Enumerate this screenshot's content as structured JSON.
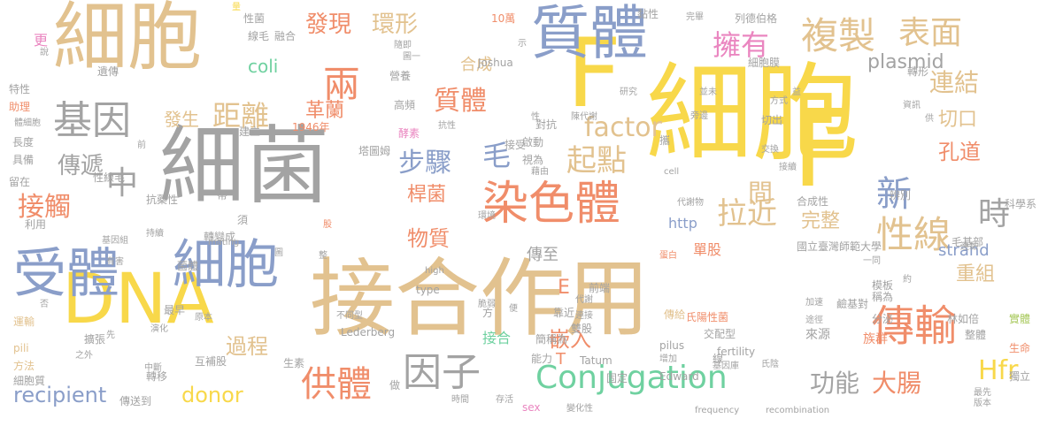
{
  "palette": {
    "tan": "#e2c28f",
    "gray": "#a3a3a3",
    "yellow": "#f8d84a",
    "coral": "#f08d6a",
    "blue": "#8a9ec9",
    "green": "#6fd1a0",
    "pink": "#ea86c0",
    "olive": "#a7c85b"
  },
  "words": [
    {
      "text": "接合作用",
      "size": 96,
      "color": "tan",
      "orient": "h"
    },
    {
      "text": "細胞",
      "size": 120,
      "color": "yellow",
      "orient": "h"
    },
    {
      "text": "細菌",
      "size": 96,
      "color": "gray",
      "orient": "h"
    },
    {
      "text": "細胞",
      "size": 84,
      "color": "tan",
      "orient": "h"
    },
    {
      "text": "DNA",
      "size": 78,
      "color": "yellow",
      "orient": "h"
    },
    {
      "text": "F",
      "size": 120,
      "color": "yellow",
      "orient": "h"
    },
    {
      "text": "F",
      "size": 108,
      "color": "yellow",
      "orient": "h"
    },
    {
      "text": "質體",
      "size": 66,
      "color": "blue",
      "orient": "h"
    },
    {
      "text": "細胞",
      "size": 60,
      "color": "blue",
      "orient": "h"
    },
    {
      "text": "受體",
      "size": 60,
      "color": "blue",
      "orient": "h"
    },
    {
      "text": "染色體",
      "size": 52,
      "color": "coral",
      "orient": "h"
    },
    {
      "text": "複製",
      "size": 42,
      "color": "tan",
      "orient": "h"
    },
    {
      "text": "表面",
      "size": 36,
      "color": "tan",
      "orient": "h"
    },
    {
      "text": "傳輸",
      "size": 48,
      "color": "coral",
      "orient": "h"
    },
    {
      "text": "基因",
      "size": 44,
      "color": "gray",
      "orient": "h"
    },
    {
      "text": "因子",
      "size": 44,
      "color": "gray",
      "orient": "h"
    },
    {
      "text": "Conjugation",
      "size": 36,
      "color": "green",
      "orient": "h"
    },
    {
      "text": "性線",
      "size": 42,
      "color": "tan",
      "orient": "h"
    },
    {
      "text": "供體",
      "size": 40,
      "color": "coral",
      "orient": "h"
    },
    {
      "text": "兩",
      "size": 42,
      "color": "coral",
      "orient": "h"
    },
    {
      "text": "中",
      "size": 36,
      "color": "gray",
      "orient": "h"
    },
    {
      "text": "新",
      "size": 40,
      "color": "blue",
      "orient": "h"
    },
    {
      "text": "時",
      "size": 36,
      "color": "gray",
      "orient": "h"
    },
    {
      "text": "拉近",
      "size": 34,
      "color": "tan",
      "orient": "h"
    },
    {
      "text": "起點",
      "size": 34,
      "color": "tan",
      "orient": "h"
    },
    {
      "text": "距離",
      "size": 32,
      "color": "tan",
      "orient": "h"
    },
    {
      "text": "擁有",
      "size": 32,
      "color": "pink",
      "orient": "h"
    },
    {
      "text": "質體",
      "size": 30,
      "color": "coral",
      "orient": "h"
    },
    {
      "text": "factor",
      "size": 30,
      "color": "tan",
      "orient": "h"
    },
    {
      "text": "步驟",
      "size": 30,
      "color": "blue",
      "orient": "h"
    },
    {
      "text": "接觸",
      "size": 30,
      "color": "coral",
      "orient": "h"
    },
    {
      "text": "連結",
      "size": 28,
      "color": "tan",
      "orient": "h"
    },
    {
      "text": "毛",
      "size": 32,
      "color": "blue",
      "orient": "h"
    },
    {
      "text": "Hfr",
      "size": 30,
      "color": "yellow",
      "orient": "h"
    },
    {
      "text": "大腸",
      "size": 28,
      "color": "coral",
      "orient": "h"
    },
    {
      "text": "功能",
      "size": 28,
      "color": "gray",
      "orient": "h"
    },
    {
      "text": "recipient",
      "size": 24,
      "color": "blue",
      "orient": "h"
    },
    {
      "text": "donor",
      "size": 24,
      "color": "yellow",
      "orient": "h"
    },
    {
      "text": "發現",
      "size": 26,
      "color": "coral",
      "orient": "h"
    },
    {
      "text": "環形",
      "size": 26,
      "color": "tan",
      "orient": "h"
    },
    {
      "text": "傳遞",
      "size": 26,
      "color": "gray",
      "orient": "h"
    },
    {
      "text": "過程",
      "size": 24,
      "color": "tan",
      "orient": "h"
    },
    {
      "text": "嵌入",
      "size": 24,
      "color": "coral",
      "orient": "h"
    },
    {
      "text": "物質",
      "size": 24,
      "color": "coral",
      "orient": "h"
    },
    {
      "text": "間",
      "size": 28,
      "color": "tan",
      "orient": "h"
    },
    {
      "text": "孔道",
      "size": 24,
      "color": "coral",
      "orient": "h"
    },
    {
      "text": "重組",
      "size": 22,
      "color": "tan",
      "orient": "h"
    },
    {
      "text": "切口",
      "size": 22,
      "color": "tan",
      "orient": "h"
    },
    {
      "text": "革蘭",
      "size": 22,
      "color": "coral",
      "orient": "h"
    },
    {
      "text": "桿菌",
      "size": 22,
      "color": "coral",
      "orient": "h"
    },
    {
      "text": "發生",
      "size": 20,
      "color": "tan",
      "orient": "h"
    },
    {
      "text": "plasmid",
      "size": 22,
      "color": "gray",
      "orient": "h"
    },
    {
      "text": "coli",
      "size": 20,
      "color": "green",
      "orient": "h"
    },
    {
      "text": "合成",
      "size": 18,
      "color": "tan",
      "orient": "h"
    },
    {
      "text": "strand",
      "size": 18,
      "color": "blue",
      "orient": "h"
    },
    {
      "text": "完整",
      "size": 22,
      "color": "tan",
      "orient": "h"
    },
    {
      "text": "單股",
      "size": 16,
      "color": "coral",
      "orient": "h"
    },
    {
      "text": "傳至",
      "size": 18,
      "color": "gray",
      "orient": "h"
    },
    {
      "text": "http",
      "size": 16,
      "color": "blue",
      "orient": "h"
    },
    {
      "text": "更",
      "size": 16,
      "color": "pink",
      "orient": "h"
    },
    {
      "text": "E",
      "size": 22,
      "color": "coral",
      "orient": "h"
    },
    {
      "text": "T",
      "size": 18,
      "color": "coral",
      "orient": "h"
    },
    {
      "text": "接合",
      "size": 16,
      "color": "green",
      "orient": "h"
    },
    {
      "text": "毛基部",
      "size": 12,
      "color": "gray",
      "orient": "h"
    },
    {
      "text": "國立臺灣師範大學",
      "size": 12,
      "color": "gray",
      "orient": "h"
    },
    {
      "text": "鹼基對",
      "size": 12,
      "color": "gray",
      "orient": "h"
    },
    {
      "text": "稱為",
      "size": 12,
      "color": "gray",
      "orient": "h"
    },
    {
      "text": "模板",
      "size": 12,
      "color": "gray",
      "orient": "h"
    },
    {
      "text": "分泌",
      "size": 12,
      "color": "gray",
      "orient": "h"
    },
    {
      "text": "林如倍",
      "size": 12,
      "color": "gray",
      "orient": "h"
    },
    {
      "text": "實體",
      "size": 12,
      "color": "olive",
      "orient": "h"
    },
    {
      "text": "生命",
      "size": 12,
      "color": "coral",
      "orient": "h"
    },
    {
      "text": "整體",
      "size": 12,
      "color": "gray",
      "orient": "h"
    },
    {
      "text": "族群",
      "size": 14,
      "color": "coral",
      "orient": "h"
    },
    {
      "text": "來源",
      "size": 14,
      "color": "gray",
      "orient": "h"
    },
    {
      "text": "交配型",
      "size": 12,
      "color": "gray",
      "orient": "h"
    },
    {
      "text": "氏陽性菌",
      "size": 12,
      "color": "coral",
      "orient": "h"
    },
    {
      "text": "傳給",
      "size": 12,
      "color": "tan",
      "orient": "h"
    },
    {
      "text": "fertility",
      "size": 12,
      "color": "gray",
      "orient": "h"
    },
    {
      "text": "加速",
      "size": 10,
      "color": "gray",
      "orient": "h"
    },
    {
      "text": "途徑",
      "size": 10,
      "color": "gray",
      "orient": "h"
    },
    {
      "text": "前端",
      "size": 12,
      "color": "gray",
      "orient": "h"
    },
    {
      "text": "代謝",
      "size": 10,
      "color": "gray",
      "orient": "h"
    },
    {
      "text": "靠近",
      "size": 12,
      "color": "gray",
      "orient": "h"
    },
    {
      "text": "雙股",
      "size": 12,
      "color": "gray",
      "orient": "h"
    },
    {
      "text": "簡稱為",
      "size": 12,
      "color": "gray",
      "orient": "h"
    },
    {
      "text": "能力",
      "size": 12,
      "color": "gray",
      "orient": "h"
    },
    {
      "text": "pilus",
      "size": 12,
      "color": "gray",
      "orient": "h"
    },
    {
      "text": "Tatum",
      "size": 12,
      "color": "gray",
      "orient": "h"
    },
    {
      "text": "增加",
      "size": 10,
      "color": "gray",
      "orient": "h"
    },
    {
      "text": "固定",
      "size": 12,
      "color": "gray",
      "orient": "h"
    },
    {
      "text": "Edward",
      "size": 12,
      "color": "gray",
      "orient": "h"
    },
    {
      "text": "基因庫",
      "size": 10,
      "color": "gray",
      "orient": "h"
    },
    {
      "text": "氏陰",
      "size": 10,
      "color": "gray",
      "orient": "h"
    },
    {
      "text": "最先",
      "size": 10,
      "color": "gray",
      "orient": "h"
    },
    {
      "text": "版本",
      "size": 10,
      "color": "gray",
      "orient": "h"
    },
    {
      "text": "獨立",
      "size": 12,
      "color": "gray",
      "orient": "h"
    },
    {
      "text": "frequency",
      "size": 10,
      "color": "gray",
      "orient": "h"
    },
    {
      "text": "recombination",
      "size": 10,
      "color": "gray",
      "orient": "h"
    },
    {
      "text": "時間",
      "size": 10,
      "color": "gray",
      "orient": "h"
    },
    {
      "text": "存活",
      "size": 10,
      "color": "gray",
      "orient": "h"
    },
    {
      "text": "sex",
      "size": 12,
      "color": "pink",
      "orient": "h"
    },
    {
      "text": "變化性",
      "size": 10,
      "color": "gray",
      "orient": "h"
    },
    {
      "text": "做",
      "size": 12,
      "color": "gray",
      "orient": "h"
    },
    {
      "text": "生素",
      "size": 12,
      "color": "gray",
      "orient": "h"
    },
    {
      "text": "互補股",
      "size": 12,
      "color": "gray",
      "orient": "h"
    },
    {
      "text": "轉移",
      "size": 12,
      "color": "gray",
      "orient": "h"
    },
    {
      "text": "傳送到",
      "size": 12,
      "color": "gray",
      "orient": "h"
    },
    {
      "text": "中斷",
      "size": 10,
      "color": "gray",
      "orient": "h"
    },
    {
      "text": "細胞質",
      "size": 12,
      "color": "gray",
      "orient": "h"
    },
    {
      "text": "方法",
      "size": 12,
      "color": "tan",
      "orient": "h"
    },
    {
      "text": "pili",
      "size": 12,
      "color": "tan",
      "orient": "h"
    },
    {
      "text": "運輸",
      "size": 12,
      "color": "tan",
      "orient": "h"
    },
    {
      "text": "之外",
      "size": 10,
      "color": "gray",
      "orient": "h"
    },
    {
      "text": "擴張",
      "size": 12,
      "color": "gray",
      "orient": "h"
    },
    {
      "text": "否",
      "size": 10,
      "color": "gray",
      "orient": "h"
    },
    {
      "text": "原本",
      "size": 10,
      "color": "gray",
      "orient": "h"
    },
    {
      "text": "最早",
      "size": 12,
      "color": "gray",
      "orient": "h"
    },
    {
      "text": "演化",
      "size": 10,
      "color": "gray",
      "orient": "h"
    },
    {
      "text": "方",
      "size": 12,
      "color": "gray",
      "orient": "h"
    },
    {
      "text": "脆弱",
      "size": 10,
      "color": "gray",
      "orient": "h"
    },
    {
      "text": "便",
      "size": 10,
      "color": "gray",
      "orient": "h"
    },
    {
      "text": "不同型",
      "size": 10,
      "color": "gray",
      "orient": "h"
    },
    {
      "text": "Lederberg",
      "size": 12,
      "color": "gray",
      "orient": "h"
    },
    {
      "text": "high",
      "size": 10,
      "color": "gray",
      "orient": "h"
    },
    {
      "text": "type",
      "size": 12,
      "color": "gray",
      "orient": "h"
    },
    {
      "text": "連接",
      "size": 10,
      "color": "gray",
      "orient": "h"
    },
    {
      "text": "蛋白",
      "size": 10,
      "color": "coral",
      "orient": "h"
    },
    {
      "text": "整",
      "size": 10,
      "color": "gray",
      "orient": "h"
    },
    {
      "text": "轉變成",
      "size": 12,
      "color": "gray",
      "orient": "h"
    },
    {
      "text": "菌體",
      "size": 12,
      "color": "gray",
      "orient": "h"
    },
    {
      "text": "持續",
      "size": 10,
      "color": "gray",
      "orient": "h"
    },
    {
      "text": "基因組",
      "size": 10,
      "color": "gray",
      "orient": "h"
    },
    {
      "text": "有害",
      "size": 10,
      "color": "gray",
      "orient": "h"
    },
    {
      "text": "利用",
      "size": 12,
      "color": "gray",
      "orient": "h"
    },
    {
      "text": "留在",
      "size": 12,
      "color": "gray",
      "orient": "h"
    },
    {
      "text": "抗藥性",
      "size": 12,
      "color": "gray",
      "orient": "h"
    },
    {
      "text": "性線毛",
      "size": 12,
      "color": "gray",
      "orient": "h"
    },
    {
      "text": "具備",
      "size": 12,
      "color": "gray",
      "orient": "h"
    },
    {
      "text": "長度",
      "size": 12,
      "color": "gray",
      "orient": "h"
    },
    {
      "text": "體細胞",
      "size": 10,
      "color": "gray",
      "orient": "h"
    },
    {
      "text": "特性",
      "size": 12,
      "color": "gray",
      "orient": "h"
    },
    {
      "text": "助理",
      "size": 12,
      "color": "coral",
      "orient": "h"
    },
    {
      "text": "說",
      "size": 10,
      "color": "gray",
      "orient": "h"
    },
    {
      "text": "遺傳",
      "size": 12,
      "color": "gray",
      "orient": "h"
    },
    {
      "text": "mating",
      "size": 10,
      "color": "gray",
      "orient": "h"
    },
    {
      "text": "須",
      "size": 12,
      "color": "gray",
      "orient": "h"
    },
    {
      "text": "帶",
      "size": 12,
      "color": "gray",
      "orient": "h"
    },
    {
      "text": "前",
      "size": 10,
      "color": "gray",
      "orient": "h"
    },
    {
      "text": "建立",
      "size": 12,
      "color": "gray",
      "orient": "h"
    },
    {
      "text": "1946年",
      "size": 12,
      "color": "coral",
      "orient": "h"
    },
    {
      "text": "酵素",
      "size": 12,
      "color": "pink",
      "orient": "h"
    },
    {
      "text": "高頻",
      "size": 12,
      "color": "gray",
      "orient": "h"
    },
    {
      "text": "塔圖姆",
      "size": 12,
      "color": "gray",
      "orient": "h"
    },
    {
      "text": "Joshua",
      "size": 12,
      "color": "gray",
      "orient": "h"
    },
    {
      "text": "10萬",
      "size": 12,
      "color": "coral",
      "orient": "h"
    },
    {
      "text": "營養",
      "size": 12,
      "color": "gray",
      "orient": "h"
    },
    {
      "text": "隨即",
      "size": 10,
      "color": "gray",
      "orient": "h"
    },
    {
      "text": "融合",
      "size": 12,
      "color": "gray",
      "orient": "h"
    },
    {
      "text": "線毛",
      "size": 12,
      "color": "gray",
      "orient": "h"
    },
    {
      "text": "性菌",
      "size": 12,
      "color": "gray",
      "orient": "h"
    },
    {
      "text": "量",
      "size": 10,
      "color": "yellow",
      "orient": "h"
    },
    {
      "text": "列德伯格",
      "size": 12,
      "color": "gray",
      "orient": "h"
    },
    {
      "text": "黏性",
      "size": 12,
      "color": "gray",
      "orient": "h"
    },
    {
      "text": "研究",
      "size": 10,
      "color": "gray",
      "orient": "h"
    },
    {
      "text": "對抗",
      "size": 12,
      "color": "gray",
      "orient": "h"
    },
    {
      "text": "啟動",
      "size": 12,
      "color": "gray",
      "orient": "h"
    },
    {
      "text": "視為",
      "size": 12,
      "color": "gray",
      "orient": "h"
    },
    {
      "text": "接受",
      "size": 12,
      "color": "gray",
      "orient": "h"
    },
    {
      "text": "抗性",
      "size": 10,
      "color": "gray",
      "orient": "h"
    },
    {
      "text": "陳代謝",
      "size": 10,
      "color": "gray",
      "orient": "h"
    },
    {
      "text": "攜",
      "size": 12,
      "color": "gray",
      "orient": "h"
    },
    {
      "text": "細胞膜",
      "size": 12,
      "color": "gray",
      "orient": "h"
    },
    {
      "text": "轉形",
      "size": 12,
      "color": "gray",
      "orient": "h"
    },
    {
      "text": "切出",
      "size": 12,
      "color": "gray",
      "orient": "h"
    },
    {
      "text": "交換",
      "size": 10,
      "color": "gray",
      "orient": "h"
    },
    {
      "text": "接續",
      "size": 10,
      "color": "gray",
      "orient": "h"
    },
    {
      "text": "cell",
      "size": 10,
      "color": "gray",
      "orient": "h"
    },
    {
      "text": "代謝物",
      "size": 10,
      "color": "gray",
      "orient": "h"
    },
    {
      "text": "合成性",
      "size": 12,
      "color": "gray",
      "orient": "h"
    },
    {
      "text": "辨別",
      "size": 12,
      "color": "gray",
      "orient": "h"
    },
    {
      "text": "科學系",
      "size": 12,
      "color": "gray",
      "orient": "h"
    },
    {
      "text": "連黏",
      "size": 10,
      "color": "gray",
      "orient": "h"
    },
    {
      "text": "約",
      "size": 10,
      "color": "gray",
      "orient": "h"
    },
    {
      "text": "一同",
      "size": 10,
      "color": "gray",
      "orient": "h"
    },
    {
      "text": "環境",
      "size": 10,
      "color": "gray",
      "orient": "h"
    },
    {
      "text": "並未",
      "size": 10,
      "color": "gray",
      "orient": "h"
    },
    {
      "text": "方式",
      "size": 10,
      "color": "gray",
      "orient": "h"
    },
    {
      "text": "益",
      "size": 10,
      "color": "gray",
      "orient": "h"
    },
    {
      "text": "性",
      "size": 10,
      "color": "gray",
      "orient": "h"
    },
    {
      "text": "旁邊",
      "size": 10,
      "color": "gray",
      "orient": "h"
    },
    {
      "text": "藉由",
      "size": 10,
      "color": "gray",
      "orient": "h"
    },
    {
      "text": "資訊",
      "size": 10,
      "color": "gray",
      "orient": "h"
    },
    {
      "text": "圖一",
      "size": 10,
      "color": "gray",
      "orient": "h"
    },
    {
      "text": "示",
      "size": 10,
      "color": "gray",
      "orient": "h"
    },
    {
      "text": "供",
      "size": 10,
      "color": "gray",
      "orient": "h"
    },
    {
      "text": "股",
      "size": 10,
      "color": "coral",
      "orient": "h"
    },
    {
      "text": "先",
      "size": 10,
      "color": "gray",
      "orient": "h"
    },
    {
      "text": "完畢",
      "size": 10,
      "color": "gray",
      "orient": "h"
    },
    {
      "text": "線",
      "size": 12,
      "color": "gray",
      "orient": "h"
    },
    {
      "text": "圖",
      "size": 10,
      "color": "gray",
      "orient": "h"
    }
  ]
}
